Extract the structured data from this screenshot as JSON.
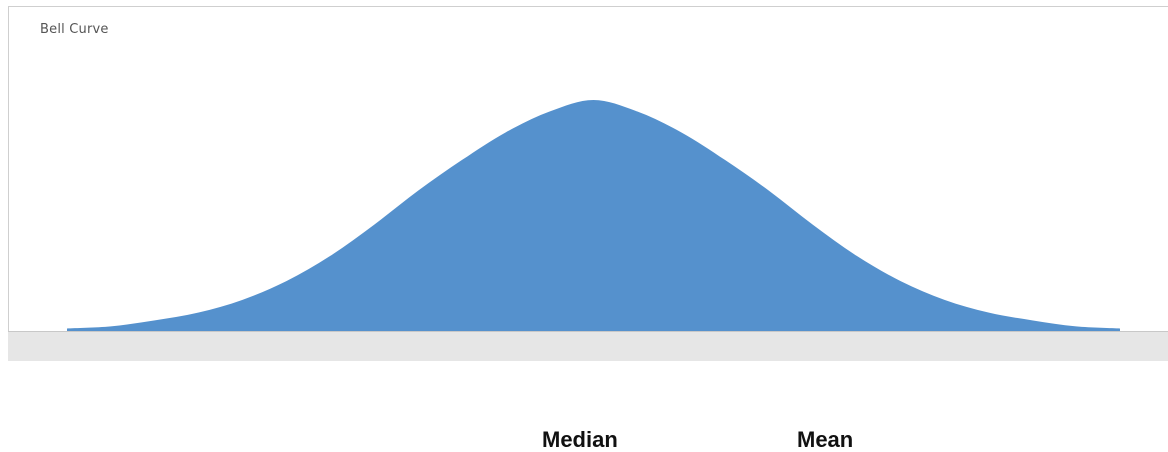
{
  "chart_data": {
    "type": "area",
    "title": "Bell Curve",
    "xlabel": "",
    "ylabel": "",
    "grid": false,
    "legend": "none",
    "color": "#5591cd",
    "x": [
      -3.0,
      -2.75,
      -2.5,
      -2.25,
      -2.0,
      -1.75,
      -1.5,
      -1.25,
      -1.0,
      -0.75,
      -0.5,
      -0.25,
      0.0,
      0.25,
      0.5,
      0.75,
      1.0,
      1.25,
      1.5,
      1.75,
      2.0,
      2.25,
      2.5,
      2.75,
      3.0
    ],
    "values": [
      0.011,
      0.02,
      0.046,
      0.08,
      0.135,
      0.216,
      0.325,
      0.46,
      0.607,
      0.74,
      0.86,
      0.95,
      1.0,
      0.95,
      0.86,
      0.74,
      0.607,
      0.46,
      0.325,
      0.216,
      0.135,
      0.08,
      0.046,
      0.02,
      0.011
    ],
    "xlim": [
      -3.0,
      3.0
    ],
    "ylim": [
      0,
      1.0
    ],
    "annotations": [
      "Median",
      "Mean"
    ]
  }
}
